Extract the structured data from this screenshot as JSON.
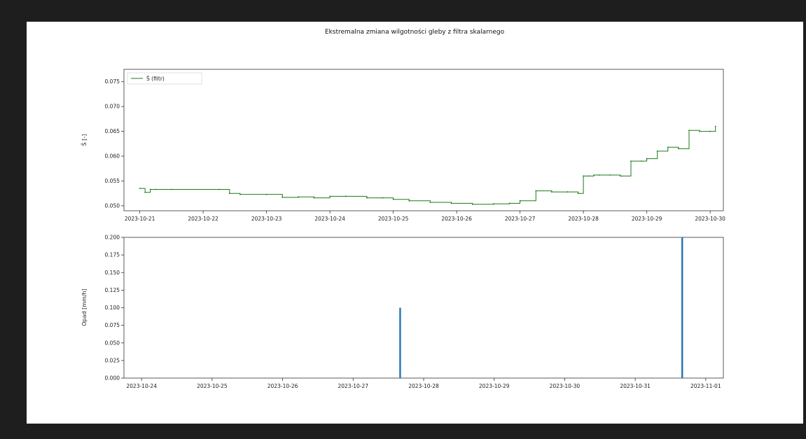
{
  "chart_data": [
    {
      "type": "line",
      "title": "Ekstremalna zmiana wilgotności gleby z filtra skalarnego",
      "xlabel": "",
      "ylabel": "Ŝ [-]",
      "x_ticks": [
        "2023-10-21",
        "2023-10-22",
        "2023-10-23",
        "2023-10-24",
        "2023-10-25",
        "2023-10-26",
        "2023-10-27",
        "2023-10-28",
        "2023-10-29",
        "2023-10-30"
      ],
      "y_ticks": [
        "0.050",
        "0.055",
        "0.060",
        "0.065",
        "0.070",
        "0.075"
      ],
      "ylim": [
        0.049,
        0.0775
      ],
      "xlim": [
        "2023-10-20 18:00",
        "2023-10-30 05:00"
      ],
      "grid": false,
      "legend_position": "top-left",
      "series": [
        {
          "name": "Ŝ (filtr)",
          "color": "#1b7a1b",
          "x": [
            "2023-10-21 00:00",
            "2023-10-21 02:00",
            "2023-10-21 04:00",
            "2023-10-21 06:00",
            "2023-10-21 12:00",
            "2023-10-22 06:00",
            "2023-10-22 10:00",
            "2023-10-22 14:00",
            "2023-10-23 00:00",
            "2023-10-23 06:00",
            "2023-10-23 12:00",
            "2023-10-23 18:00",
            "2023-10-24 00:00",
            "2023-10-24 06:00",
            "2023-10-24 14:00",
            "2023-10-24 20:00",
            "2023-10-25 00:00",
            "2023-10-25 06:00",
            "2023-10-25 14:00",
            "2023-10-25 22:00",
            "2023-10-26 06:00",
            "2023-10-26 14:00",
            "2023-10-26 20:00",
            "2023-10-27 00:00",
            "2023-10-27 06:00",
            "2023-10-27 12:00",
            "2023-10-27 18:00",
            "2023-10-27 22:00",
            "2023-10-28 00:00",
            "2023-10-28 02:00",
            "2023-10-28 04:00",
            "2023-10-28 06:00",
            "2023-10-28 10:00",
            "2023-10-28 14:00",
            "2023-10-28 18:00",
            "2023-10-28 22:00",
            "2023-10-29 00:00",
            "2023-10-29 04:00",
            "2023-10-29 08:00",
            "2023-10-29 12:00",
            "2023-10-29 16:00",
            "2023-10-29 20:00",
            "2023-10-30 00:00",
            "2023-10-30 02:00"
          ],
          "y": [
            0.0535,
            0.0527,
            0.0533,
            0.0533,
            0.0533,
            0.0533,
            0.0525,
            0.0523,
            0.0523,
            0.0517,
            0.0518,
            0.0516,
            0.0519,
            0.0519,
            0.0516,
            0.0516,
            0.0513,
            0.051,
            0.0507,
            0.0505,
            0.0503,
            0.0504,
            0.0505,
            0.051,
            0.053,
            0.0528,
            0.0528,
            0.0525,
            0.056,
            0.056,
            0.0562,
            0.0562,
            0.0562,
            0.056,
            0.059,
            0.059,
            0.0595,
            0.061,
            0.0618,
            0.0615,
            0.0652,
            0.065,
            0.065,
            0.066
          ]
        }
      ]
    },
    {
      "type": "bar",
      "title": "",
      "xlabel": "",
      "ylabel": "Opad [mm/h]",
      "x_ticks": [
        "2023-10-24",
        "2023-10-25",
        "2023-10-26",
        "2023-10-27",
        "2023-10-28",
        "2023-10-29",
        "2023-10-30",
        "2023-10-31",
        "2023-11-01"
      ],
      "y_ticks": [
        "0.000",
        "0.025",
        "0.050",
        "0.075",
        "0.100",
        "0.125",
        "0.150",
        "0.175",
        "0.200"
      ],
      "ylim": [
        0,
        0.2
      ],
      "xlim": [
        "2023-10-23 18:00",
        "2023-11-01 06:00"
      ],
      "grid": false,
      "series": [
        {
          "color": "#1f77b4",
          "x": [
            "2023-10-27 16:00",
            "2023-10-31 16:00"
          ],
          "values": [
            0.1,
            0.2
          ]
        }
      ]
    }
  ]
}
